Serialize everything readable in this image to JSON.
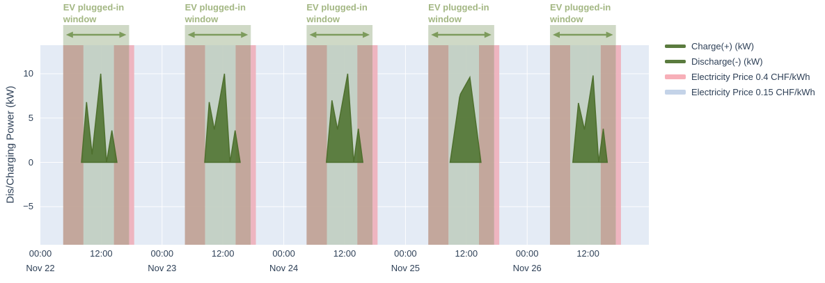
{
  "figure": {
    "ylabel": "Dis/Charging Power (kW)",
    "annotation": {
      "line1": "EV plugged-in",
      "line2": "window"
    },
    "legend": [
      {
        "label": "Charge(+) (kW)",
        "swatch": "line",
        "color": "#5a7b3e"
      },
      {
        "label": "Discharge(-) (kW)",
        "swatch": "line",
        "color": "#5a7b3e"
      },
      {
        "label": "Electricity Price 0.4 CHF/kWh",
        "swatch": "band",
        "color": "#f7afb8"
      },
      {
        "label": "Electricity Price 0.15 CHF/kWh",
        "swatch": "band",
        "color": "#c4d3e8"
      }
    ]
  },
  "chart_data": {
    "type": "area",
    "title": "",
    "xlabel": "",
    "ylabel": "Dis/Charging Power (kW)",
    "ylim": [
      -9.3,
      13.2
    ],
    "yticks": [
      10,
      5,
      0,
      -5
    ],
    "grid": true,
    "legend_position": "right",
    "x_range_hours": [
      0,
      120
    ],
    "x_axis": {
      "tick_interval_hours": 12,
      "time_tick_labels": [
        "00:00",
        "12:00",
        "00:00",
        "12:00",
        "00:00",
        "12:00",
        "00:00",
        "12:00",
        "00:00",
        "12:00"
      ],
      "date_tick_labels": [
        "Nov 22",
        "Nov 23",
        "Nov 24",
        "Nov 25",
        "Nov 26"
      ]
    },
    "price_windows": {
      "high_price_label": "Electricity Price 0.4 CHF/kWh",
      "low_price_label": "Electricity Price 0.15 CHF/kWh",
      "high_price_bands_hours_each_day": [
        [
          4.5,
          8.5
        ],
        [
          14.5,
          18.5
        ]
      ],
      "low_price": "remainder of each day",
      "ev_plugged_in_window_hours_each_day": [
        4.5,
        17.5
      ]
    },
    "series": [
      {
        "name": "Charge(+) (kW) Nov 22",
        "base_hour": 0,
        "points_h_kw": [
          [
            8.1,
            0
          ],
          [
            9.1,
            6.8
          ],
          [
            10.2,
            0.9
          ],
          [
            11.9,
            10.0
          ],
          [
            13.05,
            0
          ],
          [
            14.1,
            3.6
          ],
          [
            15.1,
            0
          ]
        ]
      },
      {
        "name": "Charge(+) (kW) Nov 23",
        "base_hour": 24,
        "points_h_kw": [
          [
            8.4,
            0
          ],
          [
            9.3,
            6.8
          ],
          [
            10.3,
            3.7
          ],
          [
            12.3,
            10.0
          ],
          [
            13.4,
            0
          ],
          [
            14.4,
            3.6
          ],
          [
            15.4,
            0
          ]
        ]
      },
      {
        "name": "Charge(+) (kW) Nov 24",
        "base_hour": 48,
        "points_h_kw": [
          [
            8.4,
            0
          ],
          [
            9.5,
            7.0
          ],
          [
            10.6,
            3.7
          ],
          [
            12.6,
            10.0
          ],
          [
            13.8,
            0
          ],
          [
            14.7,
            3.8
          ],
          [
            15.6,
            0
          ]
        ]
      },
      {
        "name": "Charge(+) (kW) Nov 25",
        "base_hour": 72,
        "points_h_kw": [
          [
            8.8,
            0
          ],
          [
            10.65,
            7.3
          ],
          [
            10.85,
            7.7
          ],
          [
            12.7,
            9.6
          ],
          [
            14.9,
            0
          ]
        ]
      },
      {
        "name": "Charge(+) (kW) Nov 26",
        "base_hour": 96,
        "points_h_kw": [
          [
            9.0,
            0
          ],
          [
            10.1,
            6.7
          ],
          [
            11.3,
            3.7
          ],
          [
            13.0,
            9.8
          ],
          [
            14.1,
            0
          ],
          [
            15.0,
            3.8
          ],
          [
            15.8,
            0
          ]
        ]
      },
      {
        "name": "Discharge(-) (kW)",
        "base_hour": 0,
        "points_h_kw": []
      }
    ],
    "colors": {
      "plot_bg": "#e4ebf5",
      "window_only": "#c2cfc2",
      "overlap_window_price": "#c1a195",
      "price_high_only": "#efb0bb",
      "window_over_white": "#cfd9c6",
      "charge_fill": "#4a7029",
      "charge_stroke": "#4b6d2a",
      "arrow": "#7d9b5c",
      "annotation_text": "#a3b783",
      "axis_text": "#2e4057",
      "gridline": "#ffffff"
    }
  }
}
